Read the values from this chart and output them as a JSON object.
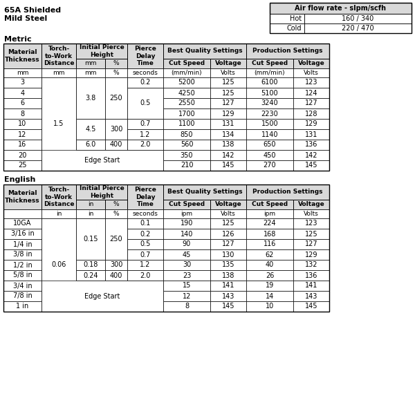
{
  "title_line1": "65A Shielded",
  "title_line2": "Mild Steel",
  "air_flow_title": "Air flow rate - slpm/scfh",
  "air_flow_hot": "160 / 340",
  "air_flow_cold": "220 / 470",
  "metric_label": "Metric",
  "english_label": "English",
  "col_units_metric": [
    "mm",
    "mm",
    "mm",
    "%",
    "seconds",
    "(mm/min)",
    "Volts",
    "(mm/min)",
    "Volts"
  ],
  "col_units_english": [
    "",
    "in",
    "in",
    "%",
    "seconds",
    "ipm",
    "Volts",
    "ipm",
    "Volts"
  ],
  "metric_data": [
    [
      "3",
      "5200",
      "125",
      "6100",
      "123"
    ],
    [
      "4",
      "4250",
      "125",
      "5100",
      "124"
    ],
    [
      "6",
      "2550",
      "127",
      "3240",
      "127"
    ],
    [
      "8",
      "1700",
      "129",
      "2230",
      "128"
    ],
    [
      "10",
      "1100",
      "131",
      "1500",
      "129"
    ],
    [
      "12",
      "850",
      "134",
      "1140",
      "131"
    ],
    [
      "16",
      "560",
      "138",
      "650",
      "136"
    ],
    [
      "20",
      "350",
      "142",
      "450",
      "142"
    ],
    [
      "25",
      "210",
      "145",
      "270",
      "145"
    ]
  ],
  "english_data": [
    [
      "10GA",
      "190",
      "125",
      "224",
      "123"
    ],
    [
      "3/16 in",
      "140",
      "126",
      "168",
      "125"
    ],
    [
      "1/4 in",
      "90",
      "127",
      "116",
      "127"
    ],
    [
      "3/8 in",
      "45",
      "130",
      "62",
      "129"
    ],
    [
      "1/2 in",
      "30",
      "135",
      "40",
      "132"
    ],
    [
      "5/8 in",
      "23",
      "138",
      "26",
      "136"
    ],
    [
      "3/4 in",
      "15",
      "141",
      "19",
      "141"
    ],
    [
      "7/8 in",
      "12",
      "143",
      "14",
      "143"
    ],
    [
      "1 in",
      "8",
      "145",
      "10",
      "145"
    ]
  ],
  "bg_color": "#ffffff",
  "header_bg": "#d9d9d9",
  "border_color": "#000000"
}
